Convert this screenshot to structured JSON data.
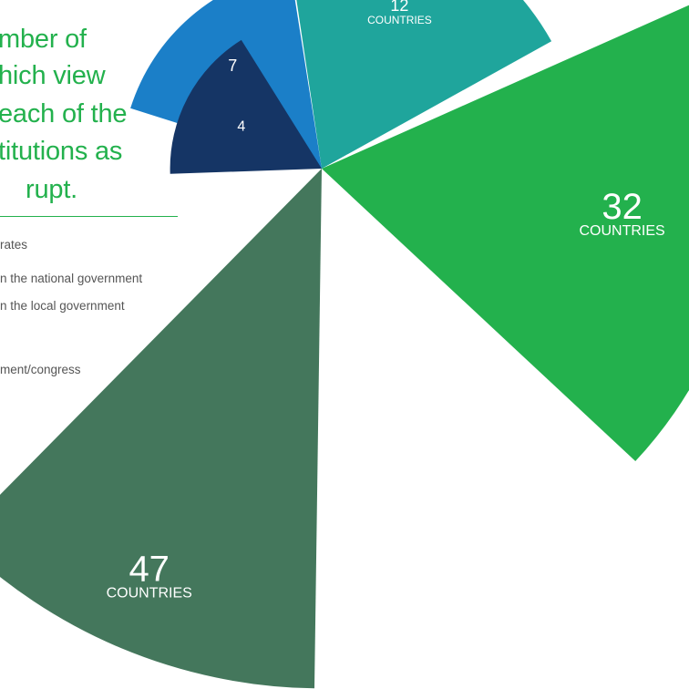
{
  "title_lines": [
    "mber of",
    "hich view",
    "each of the",
    "titutions as",
    "rupt."
  ],
  "legend_lines": [
    "rates",
    "n the national government",
    "n the local government",
    "ment/congress"
  ],
  "chart_data": {
    "type": "pie",
    "variant": "polar-area",
    "unit_label": "COUNTRIES",
    "slices": [
      {
        "value": 47,
        "label": "COUNTRIES",
        "color": "#44775c"
      },
      {
        "value": 32,
        "label": "COUNTRIES",
        "color": "#23b14d"
      },
      {
        "value": 12,
        "label": "COUNTRIES",
        "color": "#1fa59c"
      },
      {
        "value": 7,
        "label": "",
        "color": "#1b7fc8"
      },
      {
        "value": 4,
        "label": "",
        "color": "#153565"
      }
    ]
  }
}
